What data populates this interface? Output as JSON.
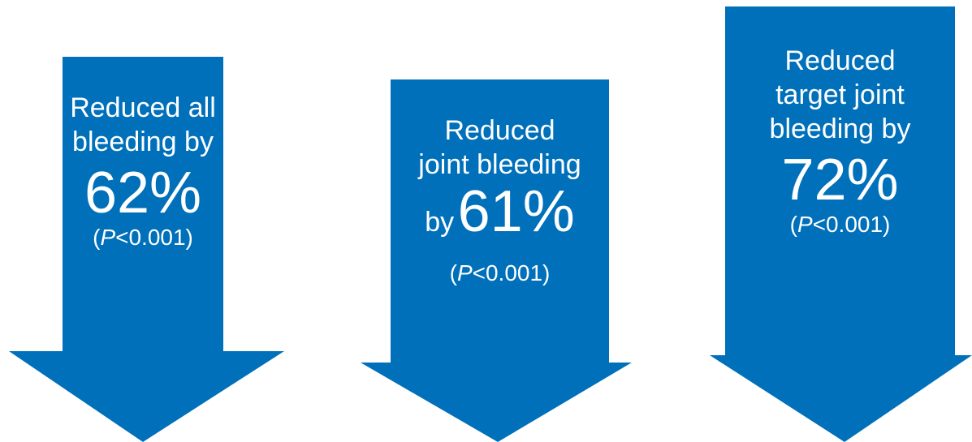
{
  "colors": {
    "arrow_fill": "#0070BA",
    "text": "#FFFFFF",
    "background": "#FFFFFF"
  },
  "arrows": [
    {
      "line1": "Reduced all",
      "line2": "bleeding by",
      "value": "62%",
      "p_prefix": "(",
      "p_symbol": "P",
      "p_rest": "<0.001)"
    },
    {
      "line1": "Reduced",
      "line2": "joint bleeding",
      "by_word": "by",
      "value": "61%",
      "p_prefix": "(",
      "p_symbol": "P",
      "p_rest": "<0.001)"
    },
    {
      "line1": "Reduced",
      "line2": "target joint",
      "line3": "bleeding by",
      "value": "72%",
      "p_prefix": "(",
      "p_symbol": "P",
      "p_rest": "<0.001)"
    }
  ]
}
